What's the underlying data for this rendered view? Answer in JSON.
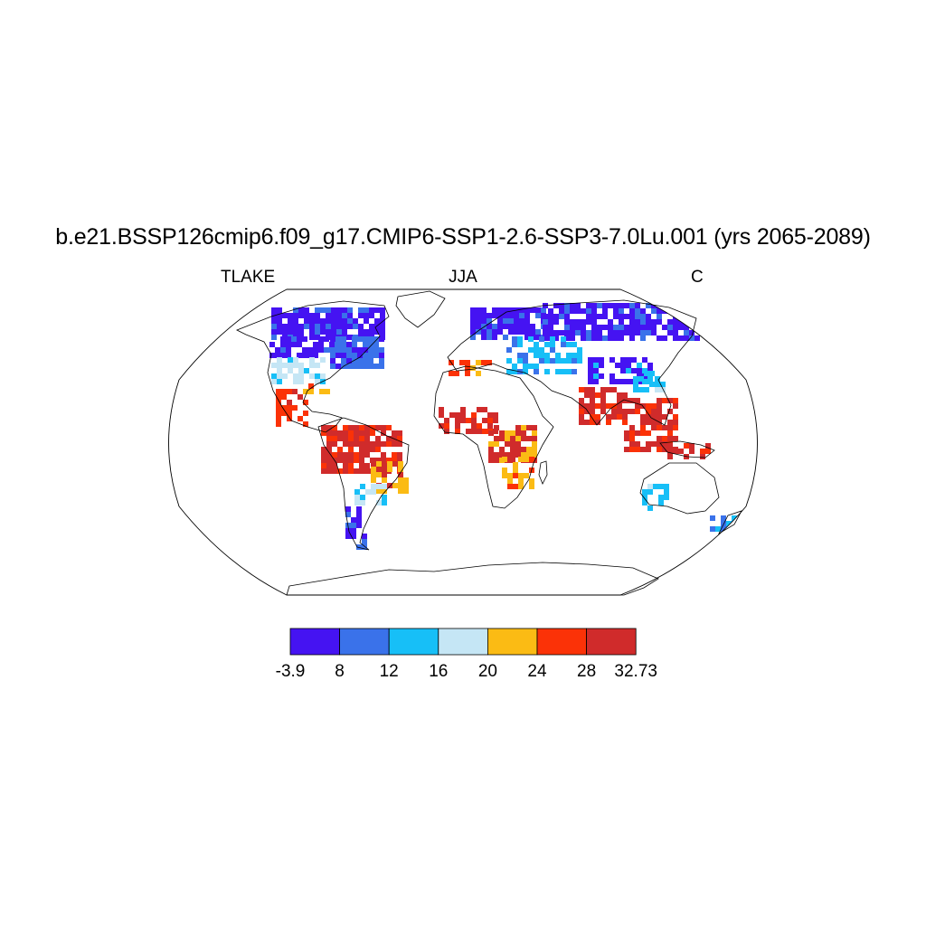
{
  "title": "b.e21.BSSP126cmip6.f09_g17.CMIP6-SSP1-2.6-SSP3-7.0Lu.001 (yrs 2065-2089)",
  "subtitle_left": "TLAKE",
  "subtitle_center": "JJA",
  "subtitle_right": "C",
  "colorbar": {
    "colors": [
      "#4513f2",
      "#3a72ea",
      "#17bff7",
      "#c5e6f5",
      "#fbbb14",
      "#fb3207",
      "#d02b2b"
    ],
    "labels": [
      "-3.9",
      "8",
      "12",
      "16",
      "20",
      "24",
      "28",
      "32.73"
    ]
  },
  "map": {
    "projection": "robinson",
    "land_outline_color": "#000000",
    "frame_color": "#000000"
  }
}
